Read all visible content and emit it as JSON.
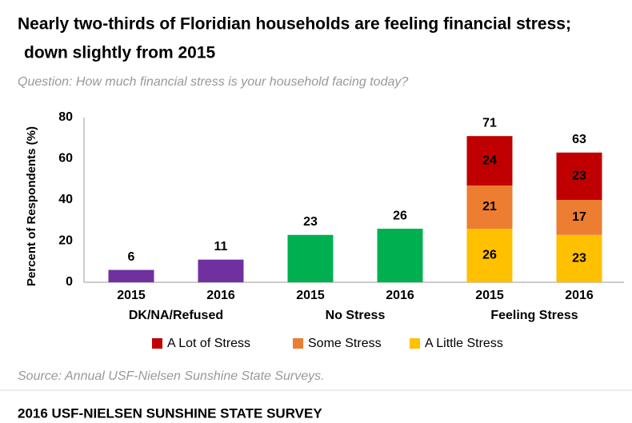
{
  "chart_data": {
    "type": "stacked_bar",
    "title": [
      "Nearly two-thirds of Floridian households are feeling financial stress;",
      "down slightly from 2015"
    ],
    "subtitle": "Question: How much financial stress is your household facing today?",
    "y_label": "Percent of Respondents (%)",
    "ylim": [
      0,
      80
    ],
    "yticks": [
      0,
      20,
      40,
      60,
      80
    ],
    "groups": [
      {
        "label": "DK/NA/Refused",
        "color": "#7030a0",
        "categories": [
          "2015",
          "2016"
        ],
        "values": [
          6,
          11
        ]
      },
      {
        "label": "No Stress",
        "color": "#00b050",
        "categories": [
          "2015",
          "2016"
        ],
        "values": [
          23,
          26
        ]
      },
      {
        "label": "Feeling Stress",
        "categories": [
          "2015",
          "2016"
        ],
        "totals": [
          71,
          63
        ],
        "series": [
          {
            "name": "A Lot of Stress",
            "color": "#c00000",
            "values": [
              24,
              23
            ]
          },
          {
            "name": "Some Stress",
            "color": "#ed7d31",
            "values": [
              21,
              17
            ]
          },
          {
            "name": "A Little Stress",
            "color": "#ffc000",
            "values": [
              26,
              23
            ]
          }
        ]
      }
    ],
    "source": "Source: Annual USF-Nielsen Sunshine State Surveys.",
    "footer": "2016 USF-NIELSEN SUNSHINE STATE SURVEY"
  }
}
